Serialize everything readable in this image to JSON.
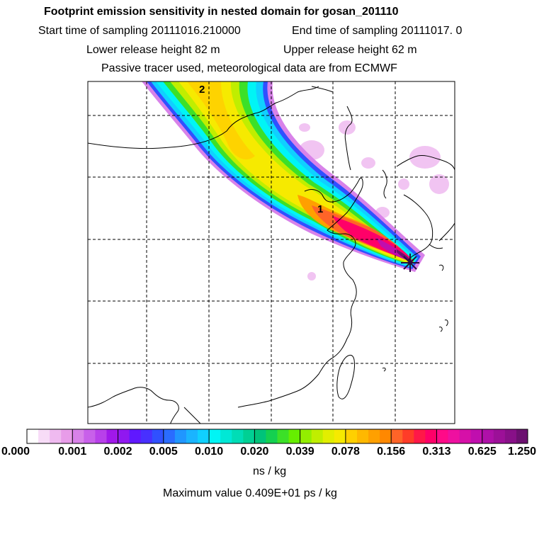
{
  "header": {
    "title": "Footprint emission sensitivity in nested domain for gosan_201110",
    "start_time": "Start time of sampling 20111016.210000",
    "end_time": "End time of sampling 20111017.     0",
    "lower_release": "Lower release height   82 m",
    "upper_release": "Upper release height   62 m",
    "passive": "Passive tracer used, meteorological data are from ECMWF"
  },
  "map": {
    "markers": [
      {
        "label": "1",
        "name": "marker-1"
      },
      {
        "label": "2",
        "name": "marker-2"
      }
    ],
    "release_point": "receptor-star"
  },
  "colorbar": {
    "tick_labels": [
      "0.000",
      "0.001",
      "0.002",
      "0.005",
      "0.010",
      "0.020",
      "0.039",
      "0.078",
      "0.156",
      "0.313",
      "0.625",
      "1.250"
    ],
    "colors": [
      "#ffffff",
      "#f7dcf7",
      "#efbaf0",
      "#e89ce9",
      "#d882e9",
      "#c860ea",
      "#b840ea",
      "#a018ea",
      "#9018f0",
      "#6018ff",
      "#4830ff",
      "#3050ff",
      "#2a6cff",
      "#2096ff",
      "#1ab4ff",
      "#10d0ff",
      "#00f5f5",
      "#00e8d6",
      "#00ddb6",
      "#00d094",
      "#00c37a",
      "#14d050",
      "#3ce028",
      "#66ee00",
      "#93ee00",
      "#c0ee00",
      "#e2ee00",
      "#f6ea00",
      "#ffd000",
      "#ffb800",
      "#ffa000",
      "#ff8800",
      "#ff6428",
      "#ff3c28",
      "#ff1848",
      "#ff0068",
      "#ff0a88",
      "#ee10a0",
      "#d610a8",
      "#c00eae",
      "#ae10a8",
      "#9c1098",
      "#881088",
      "#6c1070"
    ],
    "unit": "ns / kg",
    "maximum": "Maximum value  0.409E+01 ps / kg"
  }
}
